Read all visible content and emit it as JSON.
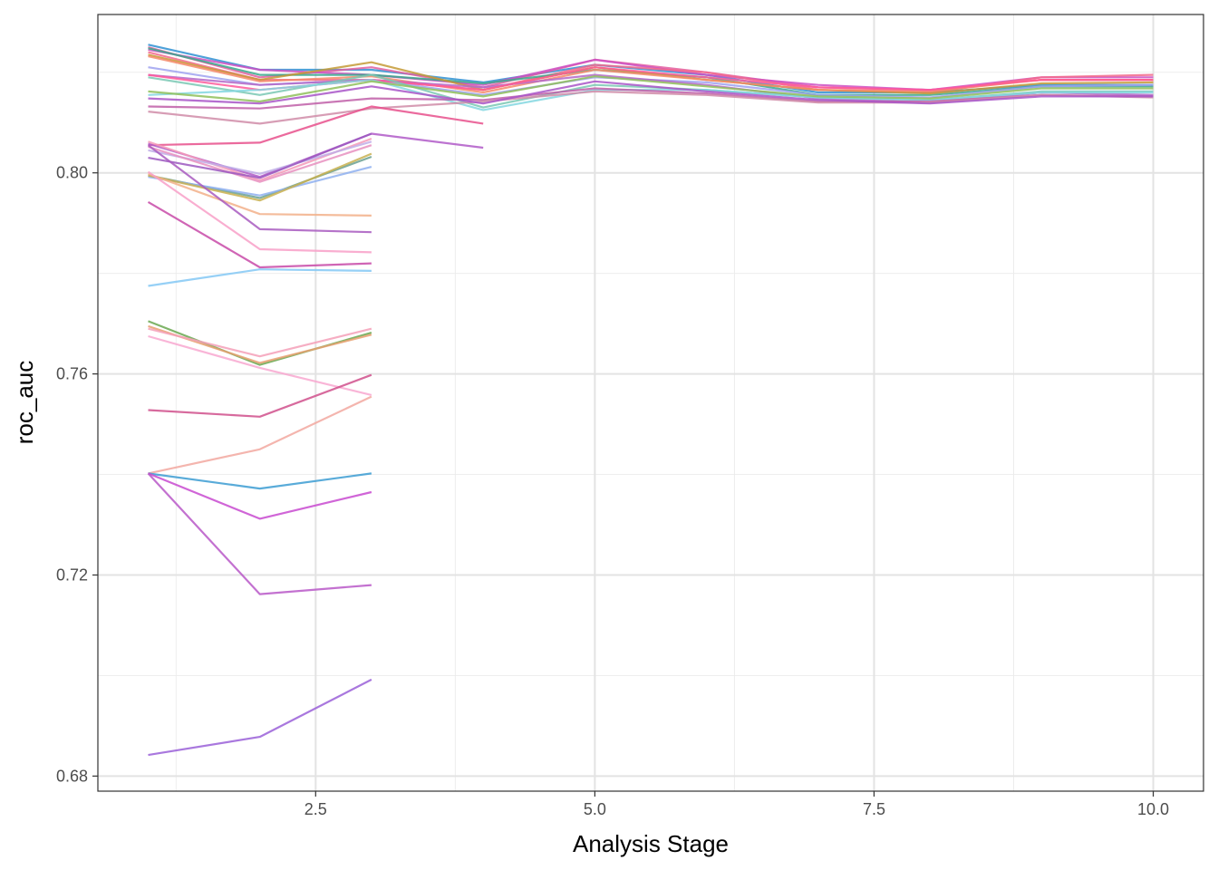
{
  "chart_data": {
    "type": "line",
    "title": "",
    "xlabel": "Analysis Stage",
    "ylabel": "roc_auc",
    "xlim": [
      0.55,
      10.45
    ],
    "ylim": [
      0.677,
      0.8315
    ],
    "x_ticks": [
      2.5,
      5.0,
      7.5,
      10.0
    ],
    "x_tick_labels": [
      "2.5",
      "5.0",
      "7.5",
      "10.0"
    ],
    "y_ticks": [
      0.68,
      0.72,
      0.76,
      0.8
    ],
    "y_tick_labels": [
      "0.68",
      "0.72",
      "0.76",
      "0.80"
    ],
    "grid": true,
    "legend": "none",
    "series": [
      {
        "color": "#2f91d2",
        "values": [
          [
            1,
            0.8255
          ],
          [
            2,
            0.8205
          ],
          [
            3,
            0.8205
          ],
          [
            4,
            0.818
          ],
          [
            5,
            0.8215
          ],
          [
            6,
            0.8195
          ],
          [
            7,
            0.816
          ],
          [
            8,
            0.816
          ],
          [
            9,
            0.8175
          ],
          [
            10,
            0.8175
          ]
        ]
      },
      {
        "color": "#e35fa0",
        "values": [
          [
            1,
            0.825
          ],
          [
            2,
            0.819
          ],
          [
            3,
            0.821
          ],
          [
            4,
            0.817
          ],
          [
            5,
            0.8225
          ],
          [
            6,
            0.82
          ],
          [
            7,
            0.817
          ],
          [
            8,
            0.8165
          ],
          [
            9,
            0.8185
          ],
          [
            10,
            0.8185
          ]
        ]
      },
      {
        "color": "#cc4fc2",
        "values": [
          [
            1,
            0.8245
          ],
          [
            2,
            0.8205
          ],
          [
            3,
            0.8195
          ],
          [
            4,
            0.8175
          ],
          [
            5,
            0.8225
          ],
          [
            6,
            0.8195
          ],
          [
            7,
            0.8175
          ],
          [
            8,
            0.8165
          ],
          [
            9,
            0.819
          ],
          [
            10,
            0.819
          ]
        ]
      },
      {
        "color": "#f26a8c",
        "values": [
          [
            1,
            0.824
          ],
          [
            2,
            0.8185
          ],
          [
            3,
            0.8185
          ],
          [
            4,
            0.8165
          ],
          [
            5,
            0.8215
          ],
          [
            6,
            0.82
          ],
          [
            7,
            0.8165
          ],
          [
            8,
            0.816
          ],
          [
            9,
            0.819
          ],
          [
            10,
            0.8195
          ]
        ]
      },
      {
        "color": "#3aa88c",
        "values": [
          [
            1,
            0.8248
          ],
          [
            2,
            0.8195
          ],
          [
            3,
            0.8195
          ],
          [
            4,
            0.8178
          ],
          [
            5,
            0.8205
          ],
          [
            6,
            0.819
          ],
          [
            7,
            0.8155
          ],
          [
            8,
            0.8155
          ],
          [
            9,
            0.8172
          ],
          [
            10,
            0.8172
          ]
        ]
      },
      {
        "color": "#c49a36",
        "values": [
          [
            1,
            0.8235
          ],
          [
            2,
            0.8185
          ],
          [
            3,
            0.822
          ],
          [
            4,
            0.8165
          ],
          [
            5,
            0.821
          ],
          [
            6,
            0.8185
          ],
          [
            7,
            0.8165
          ],
          [
            8,
            0.8158
          ],
          [
            9,
            0.8178
          ],
          [
            10,
            0.818
          ]
        ]
      },
      {
        "color": "#f58a6a",
        "values": [
          [
            1,
            0.8232
          ],
          [
            2,
            0.8182
          ],
          [
            3,
            0.8192
          ],
          [
            4,
            0.816
          ],
          [
            5,
            0.8205
          ],
          [
            6,
            0.8185
          ],
          [
            7,
            0.8165
          ],
          [
            8,
            0.8162
          ],
          [
            9,
            0.8185
          ],
          [
            10,
            0.8185
          ]
        ]
      },
      {
        "color": "#9fa2f0",
        "values": [
          [
            1,
            0.821
          ],
          [
            2,
            0.8175
          ],
          [
            3,
            0.8185
          ],
          [
            4,
            0.8155
          ],
          [
            5,
            0.819
          ],
          [
            6,
            0.818
          ],
          [
            7,
            0.8155
          ],
          [
            8,
            0.815
          ],
          [
            9,
            0.8172
          ],
          [
            10,
            0.8175
          ]
        ]
      },
      {
        "color": "#b468c8",
        "values": [
          [
            1,
            0.8195
          ],
          [
            2,
            0.8175
          ],
          [
            3,
            0.8185
          ],
          [
            4,
            0.817
          ],
          [
            5,
            0.8195
          ],
          [
            6,
            0.8175
          ],
          [
            7,
            0.8148
          ],
          [
            8,
            0.814
          ],
          [
            9,
            0.816
          ],
          [
            10,
            0.8155
          ]
        ]
      },
      {
        "color": "#ff5a9a",
        "values": [
          [
            1,
            0.8195
          ],
          [
            2,
            0.8165
          ],
          [
            3,
            0.8185
          ],
          [
            4,
            0.8165
          ],
          [
            5,
            0.821
          ],
          [
            6,
            0.819
          ],
          [
            7,
            0.817
          ],
          [
            8,
            0.8165
          ],
          [
            9,
            0.8185
          ],
          [
            10,
            0.8185
          ]
        ]
      },
      {
        "color": "#7ac8b4",
        "values": [
          [
            1,
            0.819
          ],
          [
            2,
            0.8155
          ],
          [
            3,
            0.8195
          ],
          [
            4,
            0.813
          ],
          [
            5,
            0.8175
          ],
          [
            6,
            0.8165
          ],
          [
            7,
            0.815
          ],
          [
            8,
            0.8145
          ],
          [
            9,
            0.8162
          ],
          [
            10,
            0.8162
          ]
        ]
      },
      {
        "color": "#84d7e0",
        "values": [
          [
            1,
            0.8155
          ],
          [
            2,
            0.8165
          ],
          [
            3,
            0.8185
          ],
          [
            4,
            0.8125
          ],
          [
            5,
            0.8165
          ],
          [
            6,
            0.8165
          ],
          [
            7,
            0.815
          ],
          [
            8,
            0.8145
          ],
          [
            9,
            0.816
          ],
          [
            10,
            0.816
          ]
        ]
      },
      {
        "color": "#8fbf5a",
        "values": [
          [
            1,
            0.8162
          ],
          [
            2,
            0.8142
          ],
          [
            3,
            0.8182
          ],
          [
            4,
            0.8152
          ],
          [
            5,
            0.8192
          ],
          [
            6,
            0.8172
          ],
          [
            7,
            0.8152
          ],
          [
            8,
            0.8148
          ],
          [
            9,
            0.8168
          ],
          [
            10,
            0.8168
          ]
        ]
      },
      {
        "color": "#bf5fa8",
        "values": [
          [
            1,
            0.8132
          ],
          [
            2,
            0.8128
          ],
          [
            3,
            0.8148
          ],
          [
            4,
            0.8145
          ],
          [
            5,
            0.8168
          ],
          [
            6,
            0.8158
          ],
          [
            7,
            0.8142
          ],
          [
            8,
            0.8142
          ],
          [
            9,
            0.8155
          ],
          [
            10,
            0.8152
          ]
        ]
      },
      {
        "color": "#d08ca8",
        "values": [
          [
            1,
            0.8122
          ],
          [
            2,
            0.8098
          ],
          [
            3,
            0.8128
          ],
          [
            4,
            0.8142
          ],
          [
            5,
            0.8162
          ],
          [
            6,
            0.8155
          ],
          [
            7,
            0.814
          ],
          [
            8,
            0.814
          ],
          [
            9,
            0.8155
          ],
          [
            10,
            0.815
          ]
        ]
      },
      {
        "color": "#a855c8",
        "values": [
          [
            1,
            0.8148
          ],
          [
            2,
            0.8138
          ],
          [
            3,
            0.8172
          ],
          [
            4,
            0.8138
          ],
          [
            5,
            0.8182
          ],
          [
            6,
            0.8162
          ],
          [
            7,
            0.8145
          ],
          [
            8,
            0.8138
          ],
          [
            9,
            0.8152
          ],
          [
            10,
            0.8152
          ]
        ]
      },
      {
        "color": "#e8508c",
        "values": [
          [
            1,
            0.8055
          ],
          [
            2,
            0.806
          ],
          [
            3,
            0.8132
          ],
          [
            4,
            0.8098
          ]
        ]
      },
      {
        "color": "#b05ac8",
        "values": [
          [
            1,
            0.8058
          ],
          [
            2,
            0.7992
          ],
          [
            3,
            0.8078
          ],
          [
            4,
            0.805
          ]
        ]
      },
      {
        "color": "#f59ab8",
        "values": [
          [
            1,
            0.8062
          ],
          [
            2,
            0.7985
          ],
          [
            3,
            0.8068
          ]
        ]
      },
      {
        "color": "#c0aee8",
        "values": [
          [
            1,
            0.8045
          ],
          [
            2,
            0.7998
          ],
          [
            3,
            0.8062
          ]
        ]
      },
      {
        "color": "#e890c0",
        "values": [
          [
            1,
            0.8052
          ],
          [
            2,
            0.7982
          ],
          [
            3,
            0.8055
          ]
        ]
      },
      {
        "color": "#9c58c0",
        "values": [
          [
            1,
            0.803
          ],
          [
            2,
            0.799
          ],
          [
            3,
            0.8078
          ]
        ]
      },
      {
        "color": "#6aa090",
        "values": [
          [
            1,
            0.7995
          ],
          [
            2,
            0.795
          ],
          [
            3,
            0.8032
          ]
        ]
      },
      {
        "color": "#8fb0f0",
        "values": [
          [
            1,
            0.7992
          ],
          [
            2,
            0.7955
          ],
          [
            3,
            0.8012
          ]
        ]
      },
      {
        "color": "#c8b050",
        "values": [
          [
            1,
            0.7995
          ],
          [
            2,
            0.7945
          ],
          [
            3,
            0.8038
          ]
        ]
      },
      {
        "color": "#f2b08a",
        "values": [
          [
            1,
            0.7998
          ],
          [
            2,
            0.7918
          ],
          [
            3,
            0.7915
          ]
        ]
      },
      {
        "color": "#a85ac0",
        "values": [
          [
            1,
            0.8055
          ],
          [
            2,
            0.7888
          ],
          [
            3,
            0.7882
          ]
        ]
      },
      {
        "color": "#f8a0c8",
        "values": [
          [
            1,
            0.8002
          ],
          [
            2,
            0.7848
          ],
          [
            3,
            0.7842
          ]
        ]
      },
      {
        "color": "#c84aa8",
        "values": [
          [
            1,
            0.7942
          ],
          [
            2,
            0.7812
          ],
          [
            3,
            0.782
          ]
        ]
      },
      {
        "color": "#84c8f4",
        "values": [
          [
            1,
            0.7775
          ],
          [
            2,
            0.7808
          ],
          [
            3,
            0.7805
          ]
        ]
      },
      {
        "color": "#6aa850",
        "values": [
          [
            1,
            0.7705
          ],
          [
            2,
            0.7618
          ],
          [
            3,
            0.7682
          ]
        ]
      },
      {
        "color": "#e8a070",
        "values": [
          [
            1,
            0.7695
          ],
          [
            2,
            0.7622
          ],
          [
            3,
            0.7678
          ]
        ]
      },
      {
        "color": "#f4a0b8",
        "values": [
          [
            1,
            0.769
          ],
          [
            2,
            0.7635
          ],
          [
            3,
            0.769
          ]
        ]
      },
      {
        "color": "#f8a8d0",
        "values": [
          [
            1,
            0.7675
          ],
          [
            2,
            0.7612
          ],
          [
            3,
            0.7558
          ]
        ]
      },
      {
        "color": "#d0508c",
        "values": [
          [
            1,
            0.7528
          ],
          [
            2,
            0.7515
          ],
          [
            3,
            0.7598
          ]
        ]
      },
      {
        "color": "#f2a8a0",
        "values": [
          [
            1,
            0.7402
          ],
          [
            2,
            0.745
          ],
          [
            3,
            0.7555
          ]
        ]
      },
      {
        "color": "#3c9cd2",
        "values": [
          [
            1,
            0.7402
          ],
          [
            2,
            0.7372
          ],
          [
            3,
            0.7402
          ]
        ]
      },
      {
        "color": "#c84ad0",
        "values": [
          [
            1,
            0.7402
          ],
          [
            2,
            0.7312
          ],
          [
            3,
            0.7365
          ]
        ]
      },
      {
        "color": "#b858c8",
        "values": [
          [
            1,
            0.7402
          ],
          [
            2,
            0.7162
          ],
          [
            3,
            0.718
          ]
        ]
      },
      {
        "color": "#9a60d8",
        "values": [
          [
            1,
            0.6842
          ],
          [
            2,
            0.6878
          ],
          [
            3,
            0.6992
          ]
        ]
      }
    ]
  }
}
